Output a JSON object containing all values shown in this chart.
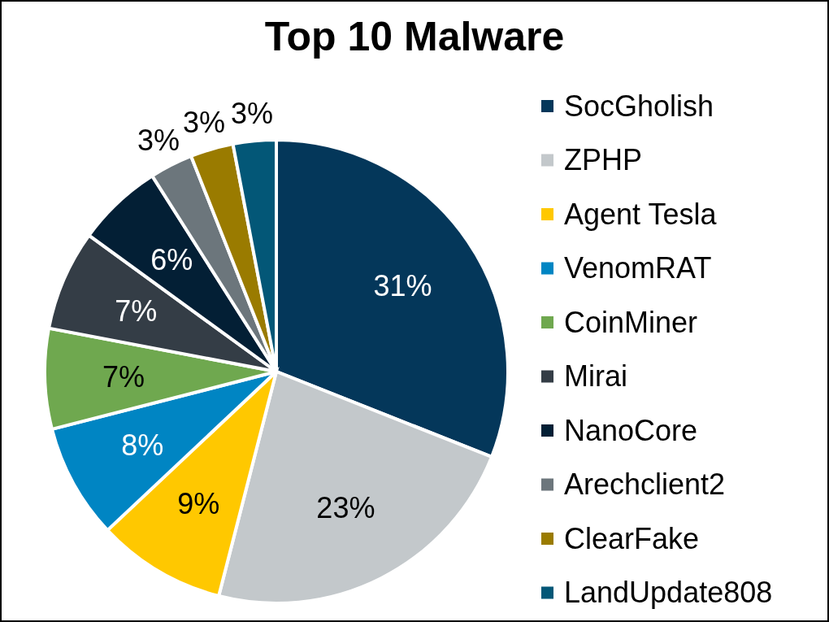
{
  "chart_data": {
    "type": "pie",
    "title": "Top 10 Malware",
    "categories": [
      "SocGholish",
      "ZPHP",
      "Agent Tesla",
      "VenomRAT",
      "CoinMiner",
      "Mirai",
      "NanoCore",
      "Arechclient2",
      "ClearFake",
      "LandUpdate808"
    ],
    "values": [
      31,
      23,
      9,
      8,
      7,
      7,
      6,
      3,
      3,
      3
    ],
    "colors": [
      "#04375a",
      "#c3c8cb",
      "#ffc800",
      "#0085c3",
      "#6fa84f",
      "#343d46",
      "#031f35",
      "#6c767c",
      "#9a7b00",
      "#035777"
    ],
    "value_labels": [
      "31%",
      "23%",
      "9%",
      "8%",
      "7%",
      "7%",
      "6%",
      "3%",
      "3%",
      "3%"
    ],
    "legend": "right"
  }
}
